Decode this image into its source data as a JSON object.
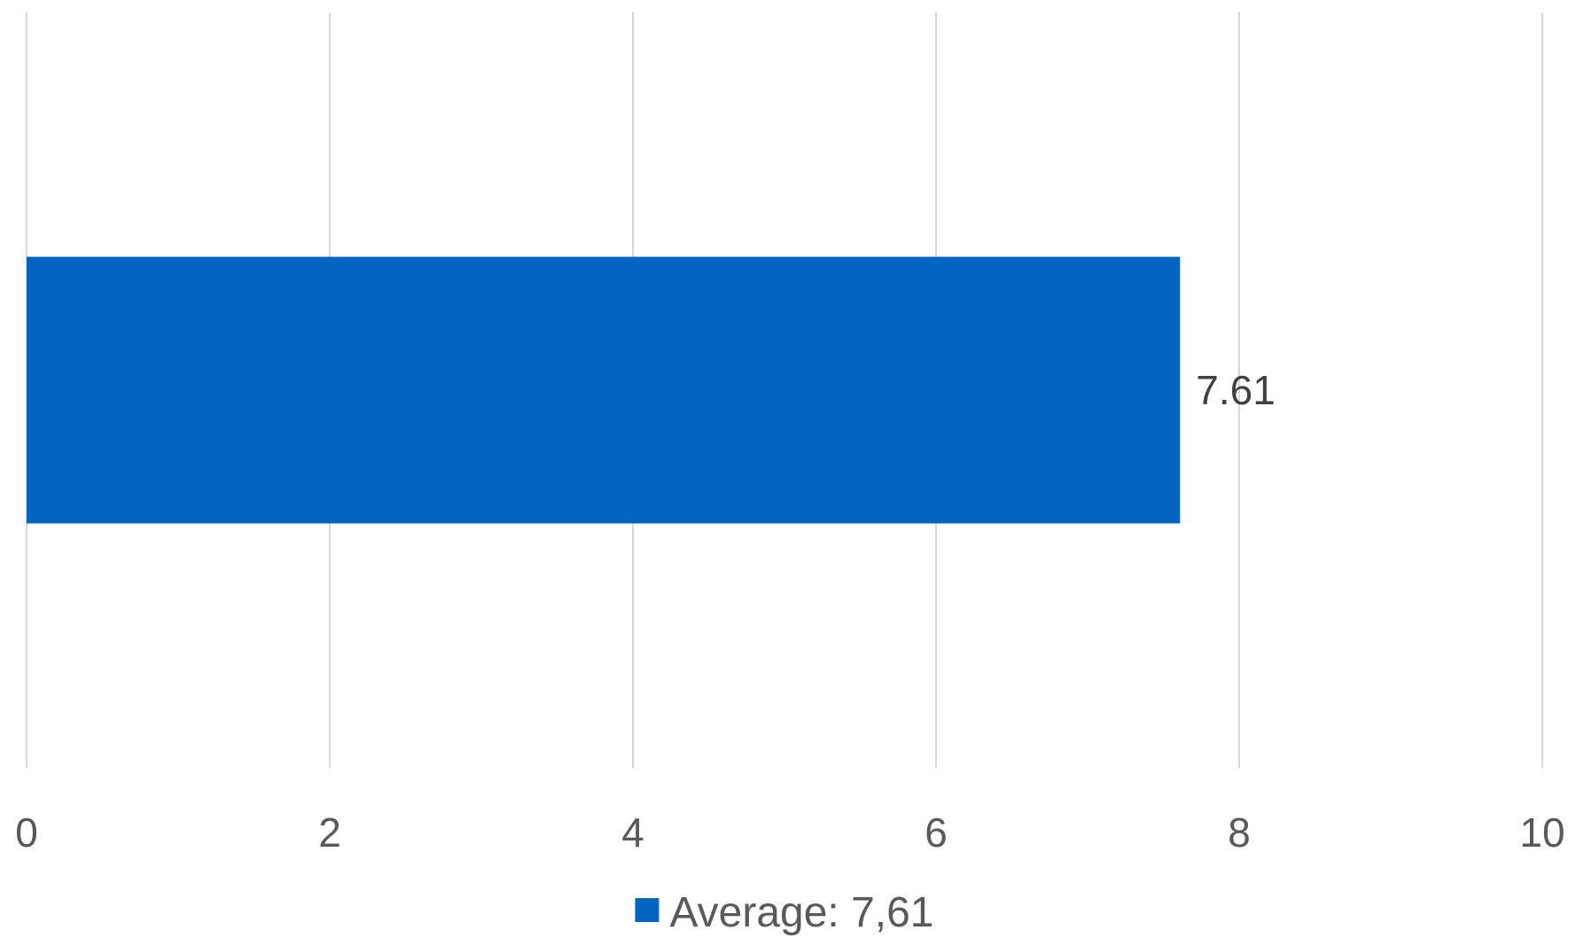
{
  "chart_data": {
    "type": "bar",
    "orientation": "horizontal",
    "title": "",
    "xlabel": "",
    "ylabel": "",
    "categories": [
      ""
    ],
    "series": [
      {
        "name": "Average: 7,61",
        "values": [
          7.61
        ],
        "color": "#0365c0"
      }
    ],
    "data_labels": [
      "7.61"
    ],
    "xlim": [
      0,
      10
    ],
    "x_ticks": [
      0,
      2,
      4,
      6,
      8,
      10
    ],
    "x_tick_labels": [
      "0",
      "2",
      "4",
      "6",
      "8",
      "10"
    ],
    "grid": "vertical",
    "grid_color": "#d9d9d9",
    "legend_position": "bottom"
  }
}
